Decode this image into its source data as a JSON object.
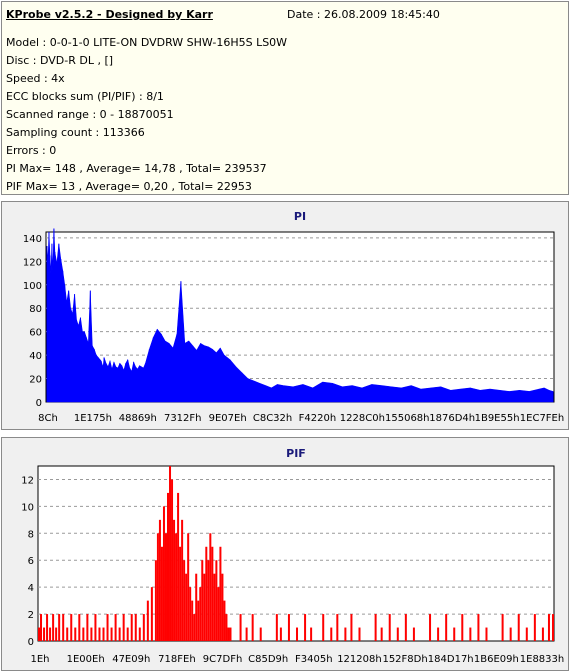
{
  "info": {
    "title": "KProbe v2.5.2 - Designed by Karr",
    "date": "Date : 26.08.2009 18:45:40",
    "lines": [
      "Model : 0-0-1-0 LITE-ON DVDRW SHW-16H5S  LS0W",
      "Disc : DVD-R DL ,  []",
      "Speed : 4x",
      "ECC blocks sum (PI/PIF) : 8/1",
      "Scanned range : 0 - 18870051",
      "Sampling count : 113366",
      "Errors : 0",
      "PI Max= 148 , Average= 14,78 , Total= 239537",
      "PIF Max= 13 , Average= 0,20 , Total= 22953"
    ]
  },
  "colors": {
    "pi": "#0000ff",
    "pif": "#ff0000",
    "plot_bg": "#ffffff",
    "panel_bg": "#f0f0f0",
    "title": "#1a1a7a"
  },
  "chart_data": [
    {
      "type": "area",
      "title": "PI",
      "xlabel": "",
      "ylabel": "",
      "ylim": [
        0,
        145
      ],
      "yticks": [
        0,
        20,
        40,
        60,
        80,
        100,
        120,
        140
      ],
      "x_tick_labels": [
        "8Ch",
        "1E175h",
        "48869h",
        "7312Fh",
        "9E07Eh",
        "C8C32h",
        "F4220h",
        "1228C0h",
        "155068h",
        "1876D4h",
        "1B9E55h",
        "1EC7FEh"
      ],
      "grid": true,
      "series": [
        {
          "color": "#0000ff",
          "x": [
            0,
            1,
            2,
            3,
            4,
            5,
            6,
            7,
            8,
            10,
            12,
            14,
            16,
            18,
            20,
            22,
            24,
            26,
            28,
            30,
            32,
            34,
            36,
            38,
            40,
            42,
            44,
            46,
            48,
            50,
            52,
            54,
            55,
            56,
            57,
            58,
            60,
            62,
            64,
            66,
            68,
            70,
            72,
            74,
            76,
            78,
            80,
            82,
            84,
            86,
            88,
            90,
            92,
            94,
            96,
            98,
            100,
            104,
            108,
            112,
            116,
            120,
            124,
            128,
            132,
            136,
            140,
            144,
            148,
            152,
            156,
            160,
            164,
            168,
            172,
            176,
            180,
            186,
            192,
            198,
            204,
            210,
            216,
            222,
            228,
            234,
            240,
            250,
            260,
            270,
            280,
            290,
            300,
            310,
            320,
            330,
            340,
            350,
            360,
            370,
            380,
            390,
            400,
            410,
            420,
            430,
            440,
            450,
            460,
            470,
            480,
            490,
            500,
            505,
            510,
            514
          ],
          "values": [
            133,
            120,
            145,
            125,
            110,
            135,
            112,
            148,
            128,
            118,
            135,
            122,
            112,
            100,
            85,
            95,
            80,
            75,
            92,
            70,
            65,
            72,
            60,
            60,
            55,
            50,
            95,
            48,
            45,
            40,
            38,
            36,
            35,
            32,
            30,
            38,
            33,
            30,
            35,
            28,
            34,
            30,
            29,
            33,
            31,
            27,
            33,
            36,
            29,
            26,
            34,
            30,
            28,
            31,
            30,
            29,
            33,
            45,
            55,
            62,
            58,
            52,
            50,
            46,
            58,
            103,
            50,
            52,
            48,
            44,
            50,
            48,
            47,
            45,
            42,
            46,
            40,
            36,
            30,
            25,
            20,
            18,
            16,
            14,
            12,
            15,
            14,
            13,
            15,
            12,
            17,
            16,
            13,
            14,
            12,
            15,
            14,
            13,
            12,
            14,
            11,
            12,
            13,
            10,
            11,
            12,
            10,
            11,
            10,
            9,
            10,
            9,
            11,
            12,
            10,
            9
          ]
        }
      ]
    },
    {
      "type": "bar",
      "title": "PIF",
      "xlabel": "",
      "ylabel": "",
      "ylim": [
        0,
        13
      ],
      "yticks": [
        0,
        2,
        4,
        6,
        8,
        10,
        12
      ],
      "x_tick_labels": [
        "1Eh",
        "1E00Eh",
        "47E09h",
        "718FEh",
        "9C7DFh",
        "C85D9h",
        "F3405h",
        "121208h",
        "152F8Dh",
        "184D17h",
        "1B6E09h",
        "1E8833h"
      ],
      "grid": true,
      "series": [
        {
          "color": "#ff0000",
          "x": [
            0,
            2,
            5,
            8,
            11,
            14,
            17,
            20,
            24,
            28,
            32,
            36,
            40,
            44,
            48,
            52,
            56,
            60,
            64,
            68,
            72,
            76,
            80,
            84,
            88,
            92,
            96,
            100,
            104,
            108,
            112,
            116,
            118,
            120,
            122,
            124,
            126,
            128,
            130,
            132,
            134,
            136,
            138,
            140,
            142,
            144,
            146,
            148,
            150,
            152,
            154,
            156,
            158,
            160,
            162,
            164,
            166,
            168,
            170,
            172,
            174,
            176,
            178,
            180,
            182,
            184,
            186,
            188,
            190,
            194,
            200,
            206,
            212,
            220,
            228,
            236,
            240,
            248,
            256,
            264,
            270,
            276,
            282,
            290,
            296,
            304,
            310,
            318,
            326,
            334,
            340,
            348,
            356,
            364,
            372,
            380,
            388,
            396,
            404,
            412,
            420,
            428,
            436,
            444,
            452,
            460,
            468,
            476,
            484,
            492,
            500,
            506,
            510
          ],
          "values": [
            1,
            2,
            1,
            2,
            1,
            2,
            1,
            2,
            2,
            1,
            2,
            1,
            2,
            1,
            2,
            1,
            2,
            1,
            1,
            2,
            1,
            2,
            1,
            2,
            1,
            2,
            2,
            1,
            2,
            3,
            4,
            6,
            8,
            9,
            7,
            10,
            8,
            11,
            13,
            12,
            9,
            8,
            11,
            7,
            9,
            6,
            5,
            8,
            4,
            3,
            2,
            5,
            3,
            4,
            6,
            5,
            7,
            6,
            8,
            7,
            5,
            6,
            4,
            7,
            5,
            3,
            2,
            1,
            1,
            0,
            2,
            1,
            2,
            1,
            0,
            2,
            1,
            2,
            1,
            2,
            1,
            0,
            2,
            1,
            2,
            1,
            2,
            1,
            0,
            2,
            1,
            2,
            1,
            2,
            1,
            0,
            2,
            1,
            2,
            1,
            2,
            1,
            2,
            1,
            0,
            2,
            1,
            2,
            1,
            2,
            1,
            2,
            2
          ]
        }
      ]
    }
  ]
}
